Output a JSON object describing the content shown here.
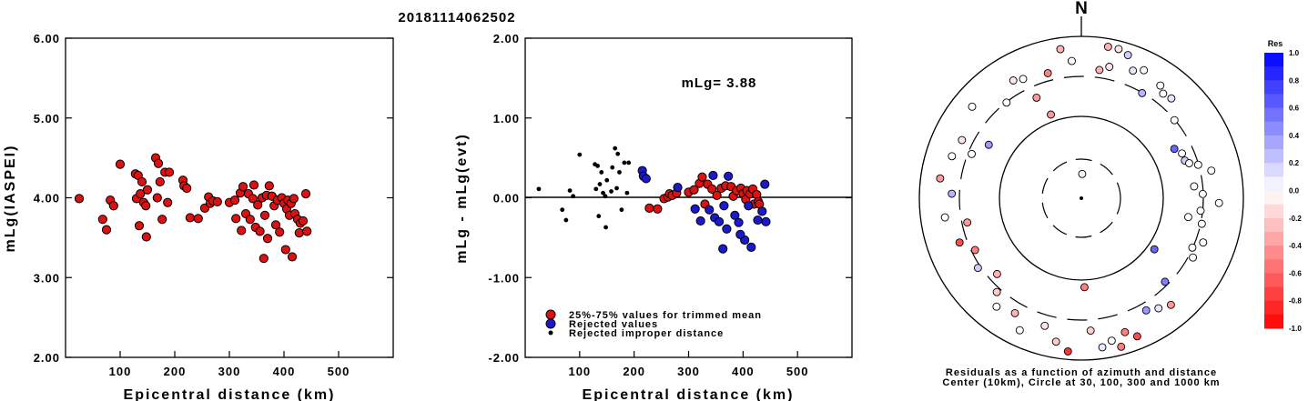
{
  "title": "20181114062502",
  "colors": {
    "red": "#dd1111",
    "blue": "#1a1acc",
    "black": "#000000"
  },
  "chart_data": [
    {
      "type": "scatter",
      "xlabel": "Epicentral distance (km)",
      "ylabel": "mLg(IASPEI)",
      "xlim": [
        0,
        600
      ],
      "ylim": [
        2.0,
        6.0
      ],
      "xticks": [
        "100",
        "200",
        "300",
        "400",
        "500"
      ],
      "yticks": [
        "2.00",
        "3.00",
        "4.00",
        "5.00",
        "6.00"
      ],
      "series": [
        {
          "color": "#dd1111",
          "points": [
            [
              25,
              3.99
            ],
            [
              68,
              3.73
            ],
            [
              75,
              3.6
            ],
            [
              82,
              3.97
            ],
            [
              88,
              3.9
            ],
            [
              100,
              4.42
            ],
            [
              128,
              4.3
            ],
            [
              130,
              3.99
            ],
            [
              133,
              4.28
            ],
            [
              135,
              3.65
            ],
            [
              137,
              4.05
            ],
            [
              140,
              4.2
            ],
            [
              143,
              3.94
            ],
            [
              147,
              3.9
            ],
            [
              148,
              3.51
            ],
            [
              150,
              4.1
            ],
            [
              165,
              4.5
            ],
            [
              168,
              4.0
            ],
            [
              170,
              4.43
            ],
            [
              173,
              4.2
            ],
            [
              177,
              3.73
            ],
            [
              182,
              4.32
            ],
            [
              187,
              3.94
            ],
            [
              190,
              4.32
            ],
            [
              215,
              4.22
            ],
            [
              217,
              4.15
            ],
            [
              222,
              4.12
            ],
            [
              228,
              3.75
            ],
            [
              243,
              3.74
            ],
            [
              255,
              3.87
            ],
            [
              262,
              4.01
            ],
            [
              265,
              3.93
            ],
            [
              270,
              3.96
            ],
            [
              278,
              3.95
            ],
            [
              300,
              3.94
            ],
            [
              310,
              3.97
            ],
            [
              312,
              3.74
            ],
            [
              320,
              4.06
            ],
            [
              322,
              3.59
            ],
            [
              325,
              4.14
            ],
            [
              330,
              3.8
            ],
            [
              335,
              4.05
            ],
            [
              338,
              3.73
            ],
            [
              343,
              3.99
            ],
            [
              345,
              4.16
            ],
            [
              348,
              3.63
            ],
            [
              352,
              3.91
            ],
            [
              356,
              3.58
            ],
            [
              360,
              4.0
            ],
            [
              363,
              3.24
            ],
            [
              365,
              3.78
            ],
            [
              368,
              4.03
            ],
            [
              370,
              3.49
            ],
            [
              373,
              4.15
            ],
            [
              378,
              4.02
            ],
            [
              382,
              3.9
            ],
            [
              385,
              3.66
            ],
            [
              388,
              3.97
            ],
            [
              392,
              3.57
            ],
            [
              396,
              4.0
            ],
            [
              400,
              3.93
            ],
            [
              403,
              3.35
            ],
            [
              405,
              3.86
            ],
            [
              407,
              3.97
            ],
            [
              410,
              3.78
            ],
            [
              413,
              3.93
            ],
            [
              415,
              3.26
            ],
            [
              418,
              3.99
            ],
            [
              420,
              3.8
            ],
            [
              425,
              3.73
            ],
            [
              428,
              3.56
            ],
            [
              430,
              3.68
            ],
            [
              435,
              3.71
            ],
            [
              440,
              4.05
            ],
            [
              442,
              3.58
            ]
          ]
        }
      ]
    },
    {
      "type": "scatter",
      "xlabel": "Epicentral distance (km)",
      "ylabel": "mLg - mLg(evt)",
      "annotation": "mLg= 3.88",
      "xlim": [
        0,
        600
      ],
      "ylim": [
        -2.0,
        2.0
      ],
      "xticks": [
        "100",
        "200",
        "300",
        "400",
        "500"
      ],
      "yticks": [
        "-2.00",
        "-1.00",
        "0.00",
        "1.00",
        "2.00"
      ],
      "reference_line": 0.0,
      "legend": [
        {
          "label": "25%-75% values for trimmed mean",
          "color": "#dd1111"
        },
        {
          "label": "Rejected values",
          "color": "#1a1acc"
        },
        {
          "label": "Rejected improper distance",
          "color": "#000000"
        }
      ],
      "series": [
        {
          "name": "25%-75% values for trimmed mean",
          "color": "#dd1111",
          "points": [
            [
              228,
              -0.13
            ],
            [
              243,
              -0.14
            ],
            [
              255,
              -0.01
            ],
            [
              262,
              0.01
            ],
            [
              265,
              0.05
            ],
            [
              270,
              0.03
            ],
            [
              278,
              0.06
            ],
            [
              300,
              0.07
            ],
            [
              310,
              0.1
            ],
            [
              320,
              0.18
            ],
            [
              325,
              0.26
            ],
            [
              330,
              -0.08
            ],
            [
              335,
              0.17
            ],
            [
              343,
              0.11
            ],
            [
              352,
              0.03
            ],
            [
              360,
              0.12
            ],
            [
              368,
              0.15
            ],
            [
              378,
              0.14
            ],
            [
              382,
              0.02
            ],
            [
              388,
              0.09
            ],
            [
              396,
              0.12
            ],
            [
              400,
              0.05
            ],
            [
              405,
              -0.02
            ],
            [
              407,
              0.09
            ],
            [
              413,
              0.05
            ],
            [
              418,
              0.11
            ],
            [
              420,
              -0.08
            ],
            [
              425,
              0.04
            ],
            [
              428,
              -0.05
            ],
            [
              430,
              -0.08
            ]
          ]
        },
        {
          "name": "Rejected values",
          "color": "#1a1acc",
          "points": [
            [
              215,
              0.34
            ],
            [
              217,
              0.27
            ],
            [
              222,
              0.24
            ],
            [
              280,
              0.13
            ],
            [
              312,
              -0.14
            ],
            [
              322,
              -0.29
            ],
            [
              338,
              -0.15
            ],
            [
              345,
              0.28
            ],
            [
              348,
              -0.25
            ],
            [
              356,
              -0.3
            ],
            [
              363,
              -0.64
            ],
            [
              365,
              -0.1
            ],
            [
              370,
              -0.39
            ],
            [
              373,
              0.27
            ],
            [
              385,
              -0.22
            ],
            [
              392,
              -0.31
            ],
            [
              403,
              -0.53
            ],
            [
              410,
              -0.1
            ],
            [
              415,
              -0.62
            ],
            [
              435,
              -0.17
            ],
            [
              440,
              0.17
            ],
            [
              442,
              -0.3
            ],
            [
              395,
              -0.46
            ],
            [
              427,
              -0.28
            ]
          ]
        },
        {
          "name": "Rejected improper distance",
          "color": "#000000",
          "points": [
            [
              25,
              0.11
            ],
            [
              68,
              -0.15
            ],
            [
              75,
              -0.28
            ],
            [
              82,
              0.09
            ],
            [
              88,
              0.02
            ],
            [
              100,
              0.54
            ],
            [
              128,
              0.42
            ],
            [
              130,
              0.11
            ],
            [
              133,
              0.4
            ],
            [
              135,
              -0.23
            ],
            [
              137,
              0.17
            ],
            [
              140,
              0.32
            ],
            [
              143,
              0.06
            ],
            [
              147,
              0.02
            ],
            [
              148,
              -0.37
            ],
            [
              150,
              0.22
            ],
            [
              165,
              0.62
            ],
            [
              168,
              0.12
            ],
            [
              170,
              0.55
            ],
            [
              173,
              0.32
            ],
            [
              177,
              -0.15
            ],
            [
              182,
              0.44
            ],
            [
              187,
              0.06
            ],
            [
              190,
              0.44
            ],
            [
              160,
              0.38
            ],
            [
              158,
              0.08
            ]
          ]
        }
      ]
    },
    {
      "type": "polar-scatter",
      "north_label": "N",
      "caption_line1": "Residuals as a function of azimuth and distance",
      "caption_line2": "Center (10km), Circle at 30, 100, 300 and 1000 km",
      "colorbar_title": "Res",
      "colorbar_labels": [
        "1.0",
        "0.8",
        "0.6",
        "0.4",
        "0.2",
        "0.0",
        "-0.2",
        "-0.4",
        "-0.6",
        "-0.8",
        "-1.0"
      ],
      "points_az_r_res": [
        [
          2,
          0.15,
          0.05
        ],
        [
          8,
          0.8,
          -0.3
        ],
        [
          12,
          0.83,
          -0.1
        ],
        [
          10,
          0.95,
          -0.3
        ],
        [
          14,
          0.95,
          -0.1
        ],
        [
          18,
          0.93,
          0.2
        ],
        [
          22,
          0.85,
          0.1
        ],
        [
          26,
          0.88,
          0.0
        ],
        [
          30,
          0.75,
          0.3
        ],
        [
          35,
          0.85,
          0.0
        ],
        [
          38,
          0.82,
          0.0
        ],
        [
          42,
          0.83,
          0.1
        ],
        [
          50,
          0.75,
          0.0
        ],
        [
          62,
          0.65,
          0.6
        ],
        [
          66,
          0.68,
          0.0
        ],
        [
          70,
          0.68,
          0.2
        ],
        [
          72,
          0.7,
          0.0
        ],
        [
          74,
          0.75,
          0.0
        ],
        [
          78,
          0.82,
          0.0
        ],
        [
          84,
          0.7,
          0.0
        ],
        [
          88,
          0.75,
          0.0
        ],
        [
          92,
          0.85,
          0.0
        ],
        [
          96,
          0.74,
          0.0
        ],
        [
          100,
          0.67,
          0.0
        ],
        [
          102,
          0.76,
          0.0
        ],
        [
          110,
          0.8,
          0.0
        ],
        [
          114,
          0.75,
          0.0
        ],
        [
          118,
          0.78,
          0.0
        ],
        [
          125,
          0.55,
          0.6
        ],
        [
          135,
          0.73,
          0.5
        ],
        [
          140,
          0.86,
          -0.4
        ],
        [
          145,
          0.83,
          0.1
        ],
        [
          150,
          0.8,
          0.4
        ],
        [
          158,
          0.92,
          -0.7
        ],
        [
          162,
          0.87,
          -0.5
        ],
        [
          165,
          0.95,
          -0.5
        ],
        [
          168,
          0.9,
          0.0
        ],
        [
          172,
          0.93,
          0.1
        ],
        [
          176,
          0.82,
          -0.2
        ],
        [
          178,
          0.55,
          -0.5
        ],
        [
          185,
          0.95,
          -0.8
        ],
        [
          190,
          0.9,
          -0.2
        ],
        [
          196,
          0.82,
          -0.1
        ],
        [
          205,
          0.9,
          0.0
        ],
        [
          210,
          0.82,
          -0.3
        ],
        [
          218,
          0.85,
          0.0
        ],
        [
          222,
          0.78,
          -0.2
        ],
        [
          228,
          0.7,
          -0.3
        ],
        [
          236,
          0.77,
          0.2
        ],
        [
          244,
          0.73,
          -0.5
        ],
        [
          250,
          0.8,
          -0.7
        ],
        [
          258,
          0.72,
          -0.4
        ],
        [
          262,
          0.85,
          0.0
        ],
        [
          272,
          0.8,
          0.3
        ],
        [
          278,
          0.88,
          -0.4
        ],
        [
          288,
          0.84,
          0.0
        ],
        [
          292,
          0.73,
          0.0
        ],
        [
          296,
          0.82,
          -0.1
        ],
        [
          300,
          0.66,
          0.4
        ],
        [
          310,
          0.88,
          0.0
        ],
        [
          322,
          0.75,
          0.0
        ],
        [
          330,
          0.84,
          -0.1
        ],
        [
          334,
          0.82,
          0.0
        ],
        [
          336,
          0.68,
          -0.4
        ],
        [
          345,
          0.8,
          -0.5
        ],
        [
          352,
          0.93,
          -0.3
        ],
        [
          356,
          0.85,
          0.0
        ],
        [
          340,
          0.55,
          -0.4
        ]
      ]
    }
  ]
}
